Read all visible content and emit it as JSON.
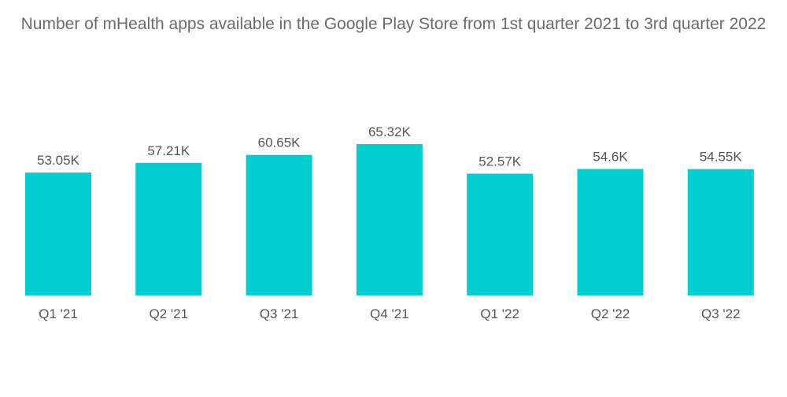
{
  "chart_data": {
    "type": "bar",
    "title": "Number of mHealth apps available in the Google Play Store from 1st quarter 2021 to 3rd quarter 2022",
    "categories": [
      "Q1 '21",
      "Q2 '21",
      "Q3 '21",
      "Q4 '21",
      "Q1 '22",
      "Q2 '22",
      "Q3 '22"
    ],
    "values": [
      53.05,
      57.21,
      60.65,
      65.32,
      52.57,
      54.6,
      54.55
    ],
    "value_labels": [
      "53.05K",
      "57.21K",
      "60.65K",
      "65.32K",
      "52.57K",
      "54.6K",
      "54.55K"
    ],
    "unit": "K",
    "xlabel": "",
    "ylabel": "",
    "ylim": [
      0,
      65.32
    ],
    "grid": false,
    "legend": "none",
    "colors": {
      "bar": "#00CED1",
      "text": "#555555",
      "title": "#6b6b6b"
    }
  }
}
